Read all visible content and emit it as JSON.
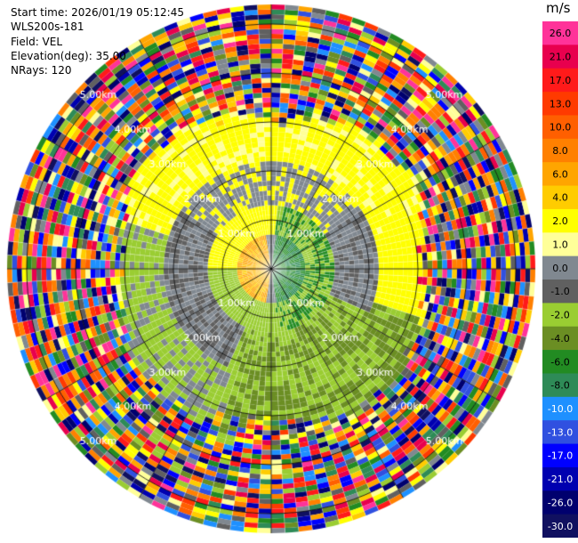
{
  "header": {
    "start_time": "Start time: 2026/01/19 05:12:45",
    "instrument": "WLS200s-181",
    "field": "Field: VEL",
    "elevation": "Elevation(deg): 35.00",
    "nrays": "NRays: 120"
  },
  "colorbar": {
    "unit": "m/s",
    "levels": [
      {
        "label": "26.0",
        "color": "#ff3399"
      },
      {
        "label": "21.0",
        "color": "#e8004e"
      },
      {
        "label": "17.0",
        "color": "#ff1a1a"
      },
      {
        "label": "13.0",
        "color": "#ff3a00"
      },
      {
        "label": "10.0",
        "color": "#ff5f00"
      },
      {
        "label": "8.0",
        "color": "#ff8000"
      },
      {
        "label": "6.0",
        "color": "#ffa500"
      },
      {
        "label": "4.0",
        "color": "#ffcc00"
      },
      {
        "label": "2.0",
        "color": "#ffff00"
      },
      {
        "label": "1.0",
        "color": "#ffff99"
      },
      {
        "label": "0.0",
        "color": "#808890"
      },
      {
        "label": "-1.0",
        "color": "#606060"
      },
      {
        "label": "-2.0",
        "color": "#9acd32"
      },
      {
        "label": "-4.0",
        "color": "#6b8e23"
      },
      {
        "label": "-6.0",
        "color": "#228b22"
      },
      {
        "label": "-8.0",
        "color": "#2e8b57"
      },
      {
        "label": "-10.0",
        "color": "#1e90ff"
      },
      {
        "label": "-13.0",
        "color": "#3050e0"
      },
      {
        "label": "-17.0",
        "color": "#0000ff"
      },
      {
        "label": "-21.0",
        "color": "#0000b0"
      },
      {
        "label": "-26.0",
        "color": "#00006e"
      },
      {
        "label": "-30.0",
        "color": "#101060"
      }
    ]
  },
  "chart_data": {
    "type": "heatmap",
    "projection": "polar (PPI)",
    "field": "VEL",
    "units": "m/s",
    "elevation_deg": 35.0,
    "n_rays": 120,
    "max_range_km": 5.4,
    "range_rings_km": [
      1.0,
      2.0,
      3.0,
      4.0,
      5.0
    ],
    "ring_labels": [
      "1.00km",
      "2.00km",
      "3.00km",
      "4.00km",
      "5.00km"
    ],
    "spoke_angles_deg": [
      0,
      30,
      60,
      90,
      120,
      150,
      180,
      210,
      240,
      270,
      300,
      330
    ],
    "grid": true,
    "inner_valid_region": {
      "approx_range_km": [
        0.0,
        3.1
      ],
      "dominant_values_ms": {
        "north": "2.0",
        "west": "-2.0 to 0.0",
        "south": "-2.0 to -4.0",
        "east": "0.0 to 2.0",
        "center_east": "-4.0 to -8.0",
        "center_west": "4.0 to 2.0"
      }
    },
    "outer_region": "noise (random values across full scale)"
  }
}
